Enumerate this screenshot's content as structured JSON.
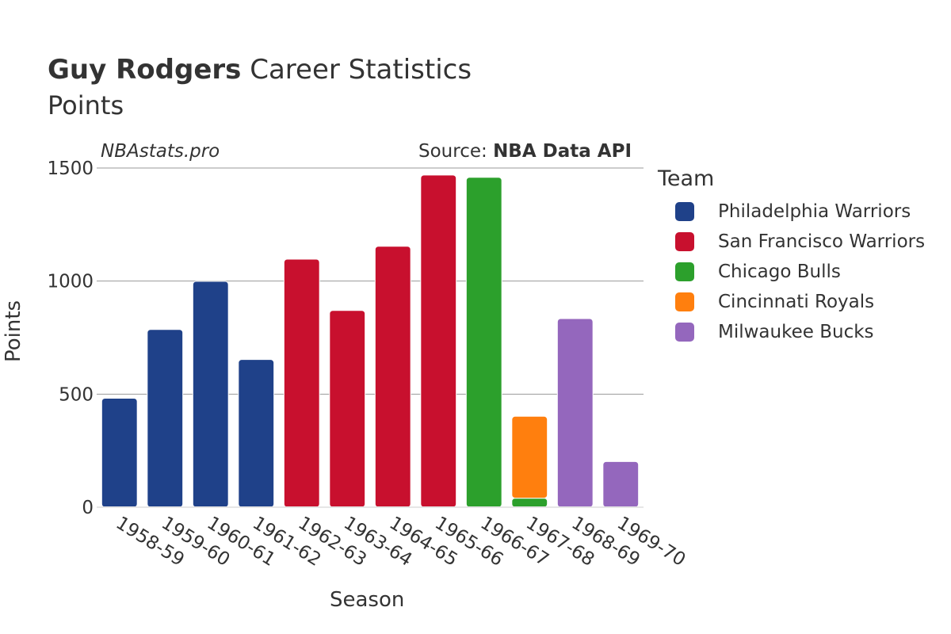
{
  "header": {
    "title_bold": "Guy Rodgers",
    "title_rest": " Career Statistics",
    "subtitle": "Points",
    "watermark": "NBAstats.pro",
    "source_prefix": "Source: ",
    "source_bold": "NBA Data API"
  },
  "legend": {
    "title": "Team",
    "items": [
      {
        "label": "Philadelphia Warriors",
        "color": "#1f4189"
      },
      {
        "label": "San Francisco Warriors",
        "color": "#c8102e"
      },
      {
        "label": "Chicago Bulls",
        "color": "#2ca02c"
      },
      {
        "label": "Cincinnati Royals",
        "color": "#ff7f0e"
      },
      {
        "label": "Milwaukee Bucks",
        "color": "#9467bd"
      }
    ]
  },
  "chart_data": {
    "type": "bar",
    "stacked": true,
    "title": "Guy Rodgers Career Statistics",
    "subtitle": "Points",
    "xlabel": "Season",
    "ylabel": "Points",
    "ylim": [
      0,
      1550
    ],
    "yticks": [
      0,
      500,
      1000,
      1500
    ],
    "grid": true,
    "legend_position": "right",
    "categories": [
      "1958-59",
      "1959-60",
      "1960-61",
      "1961-62",
      "1962-63",
      "1963-64",
      "1964-65",
      "1965-66",
      "1966-67",
      "1967-68",
      "1968-69",
      "1969-70"
    ],
    "series": [
      {
        "name": "Philadelphia Warriors",
        "color": "#1f4189",
        "values": [
          482,
          786,
          999,
          653,
          0,
          0,
          0,
          0,
          0,
          0,
          0,
          0
        ]
      },
      {
        "name": "San Francisco Warriors",
        "color": "#c8102e",
        "values": [
          0,
          0,
          0,
          0,
          1097,
          870,
          1154,
          1469,
          0,
          0,
          0,
          0
        ]
      },
      {
        "name": "Chicago Bulls",
        "color": "#2ca02c",
        "values": [
          0,
          0,
          0,
          0,
          0,
          0,
          0,
          0,
          1459,
          40,
          0,
          0
        ]
      },
      {
        "name": "Cincinnati Royals",
        "color": "#ff7f0e",
        "values": [
          0,
          0,
          0,
          0,
          0,
          0,
          0,
          0,
          0,
          362,
          0,
          0
        ]
      },
      {
        "name": "Milwaukee Bucks",
        "color": "#9467bd",
        "values": [
          0,
          0,
          0,
          0,
          0,
          0,
          0,
          0,
          0,
          0,
          834,
          202
        ]
      }
    ]
  }
}
